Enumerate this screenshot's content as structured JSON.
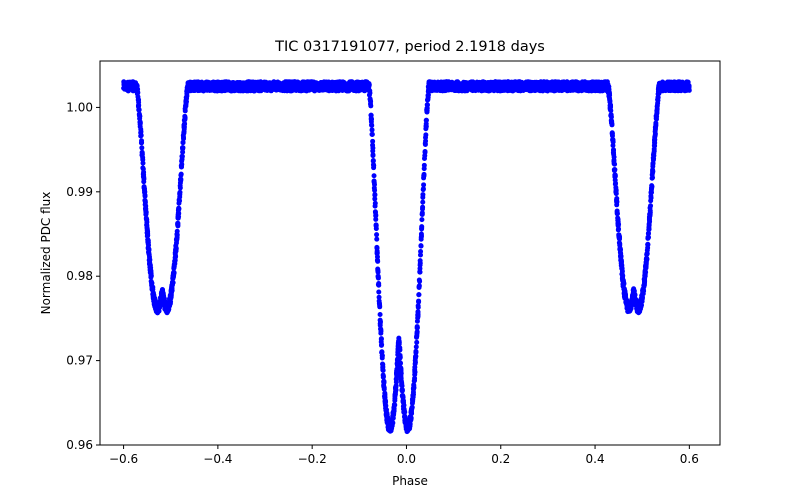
{
  "chart_data": {
    "type": "scatter",
    "title": "TIC 0317191077, period 2.1918 days",
    "xlabel": "Phase",
    "ylabel": "Normalized PDC flux",
    "xlim": [
      -0.65,
      0.665
    ],
    "ylim": [
      0.96,
      1.0055
    ],
    "x_ticks": [
      -0.6,
      -0.4,
      -0.2,
      0.0,
      0.2,
      0.4,
      0.6
    ],
    "x_tick_labels": [
      "−0.6",
      "−0.4",
      "−0.2",
      "0.0",
      "0.2",
      "0.4",
      "0.6"
    ],
    "y_ticks": [
      0.96,
      0.97,
      0.98,
      0.99,
      1.0
    ],
    "y_tick_labels": [
      "0.96",
      "0.97",
      "0.98",
      "0.99",
      "1.00"
    ],
    "marker_color": "#0000ff",
    "baseline_flux": 1.0025,
    "baseline_scatter": 0.0011,
    "phase_range": [
      -0.6,
      0.6
    ],
    "series": [
      {
        "name": "primary eclipse",
        "center_phases": [
          -0.035,
          0.003
        ],
        "min_flux": 0.962,
        "half_width_phase": 0.045
      },
      {
        "name": "secondary eclipse",
        "center_phases": [
          -0.528,
          -0.508,
          0.472,
          0.492
        ],
        "min_flux": 0.9762,
        "half_width_phase": 0.045
      }
    ]
  }
}
